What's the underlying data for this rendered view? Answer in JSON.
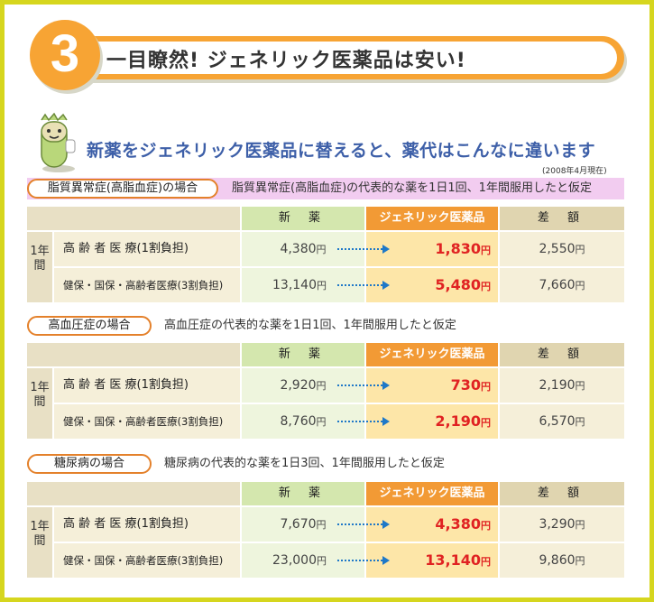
{
  "header": {
    "number": "3",
    "title": "一目瞭然! ジェネリック医薬品は安い!"
  },
  "subtitle": "新薬をジェネリック医薬品に替えると、薬代はこんなに違います",
  "date_note": "(2008年4月現在)",
  "columns": {
    "new": "新 薬",
    "generic": "ジェネリック医薬品",
    "diff": "差 額",
    "year": "1年間"
  },
  "rows": {
    "elderly": "高 齢 者 医 療(1割負担)",
    "insured": "健保・国保・高齢者医療(3割負担)"
  },
  "sections": [
    {
      "label": "脂質異常症(高脂血症)の場合",
      "desc": "脂質異常症(高脂血症)の代表的な薬を1日1回、1年間服用したと仮定",
      "values": [
        {
          "new": "4,380",
          "generic": "1,830",
          "diff": "2,550"
        },
        {
          "new": "13,140",
          "generic": "5,480",
          "diff": "7,660"
        }
      ]
    },
    {
      "label": "高血圧症の場合",
      "desc": "高血圧症の代表的な薬を1日1回、1年間服用したと仮定",
      "values": [
        {
          "new": "2,920",
          "generic": "730",
          "diff": "2,190"
        },
        {
          "new": "8,760",
          "generic": "2,190",
          "diff": "6,570"
        }
      ]
    },
    {
      "label": "糖尿病の場合",
      "desc": "糖尿病の代表的な薬を1日3回、1年間服用したと仮定",
      "values": [
        {
          "new": "7,670",
          "generic": "4,380",
          "diff": "3,290"
        },
        {
          "new": "23,000",
          "generic": "13,140",
          "diff": "9,860"
        }
      ]
    }
  ],
  "unit": "円",
  "colors": {
    "frame": "#d6d61e",
    "accent": "#f7a434",
    "generic_price": "#e02222",
    "subtitle": "#3d5fa8"
  }
}
